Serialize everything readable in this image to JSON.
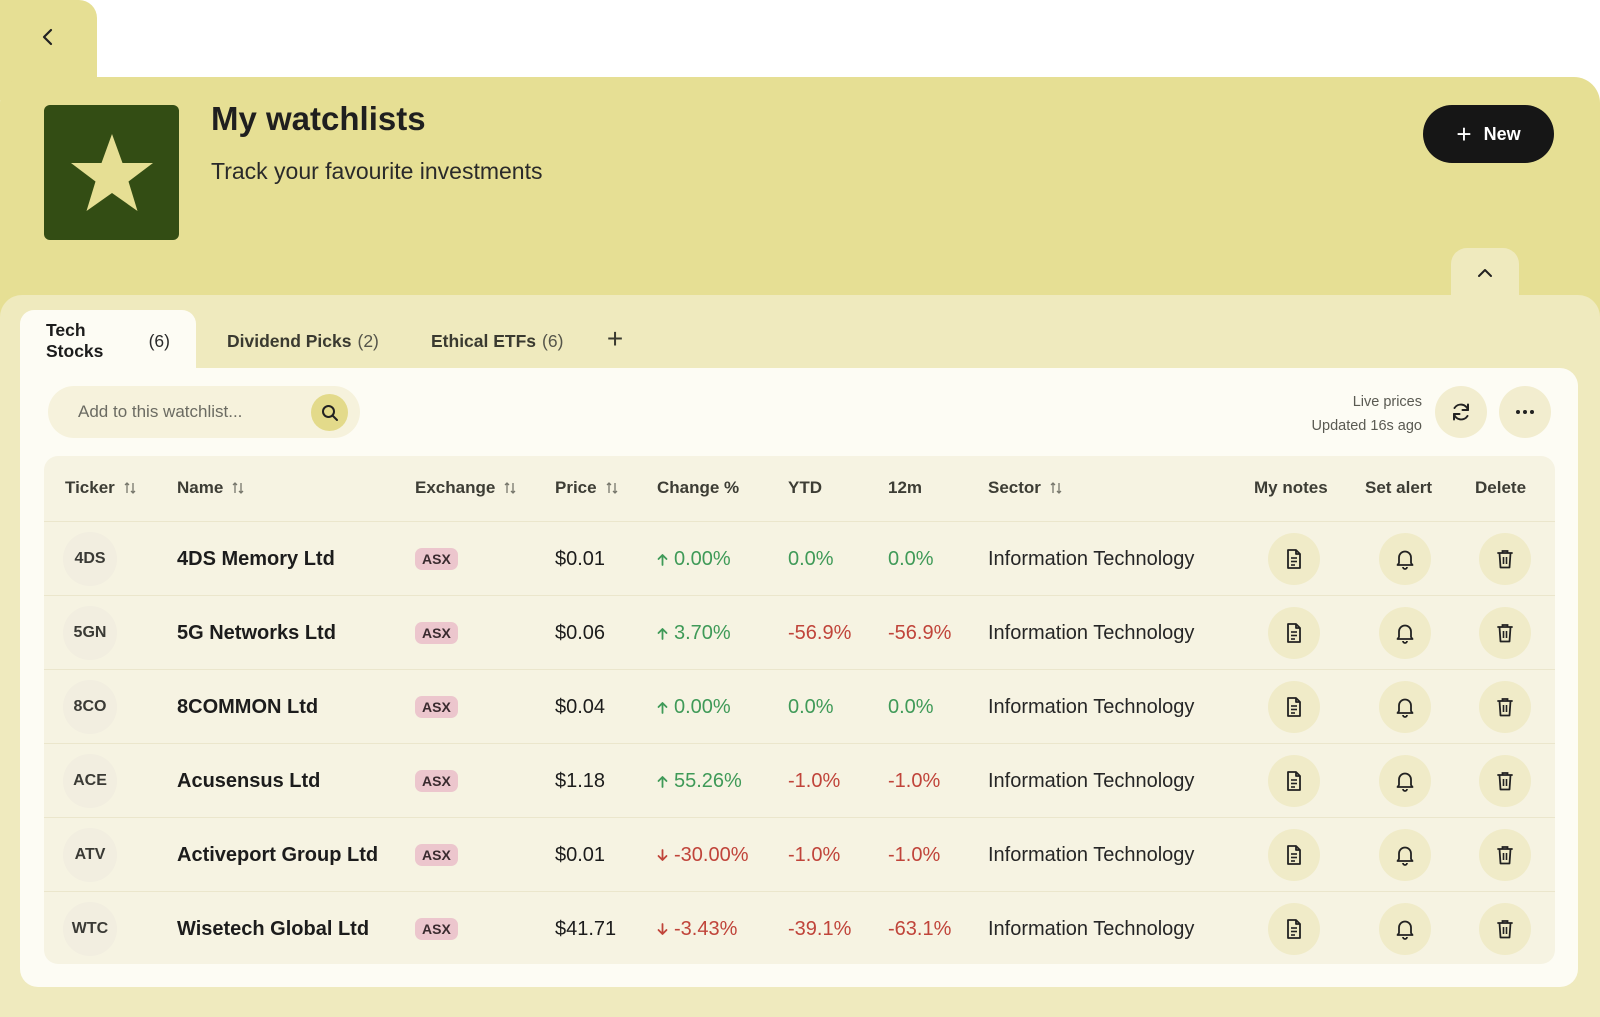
{
  "header": {
    "title": "My watchlists",
    "subtitle": "Track your favourite investments",
    "new_button": {
      "plus": "+",
      "label": "New"
    },
    "logo_icon": "star-icon",
    "colors": {
      "header_bg": "#e6df94",
      "logo_bg": "#334d14",
      "star": "#e6df94"
    }
  },
  "tabs": [
    {
      "label": "Tech Stocks",
      "count": "(6)",
      "active": true
    },
    {
      "label": "Dividend Picks",
      "count": "(2)",
      "active": false
    },
    {
      "label": "Ethical ETFs",
      "count": "(6)",
      "active": false
    }
  ],
  "add_tab": "+",
  "toolbar": {
    "search_placeholder": "Add to this watchlist...",
    "live_prices": "Live prices",
    "updated": "Updated 16s ago"
  },
  "table": {
    "columns": [
      "Ticker",
      "Name",
      "Exchange",
      "Price",
      "Change %",
      "YTD",
      "12m",
      "Sector",
      "My notes",
      "Set alert",
      "Delete"
    ],
    "rows": [
      {
        "ticker": "4DS",
        "name": "4DS Memory Ltd",
        "exchange": "ASX",
        "price": "$0.01",
        "change": "0.00%",
        "change_dir": "up",
        "ytd": "0.0%",
        "ytd_dir": "pos",
        "m12": "0.0%",
        "m12_dir": "pos",
        "sector": "Information Technology"
      },
      {
        "ticker": "5GN",
        "name": "5G Networks Ltd",
        "exchange": "ASX",
        "price": "$0.06",
        "change": "3.70%",
        "change_dir": "up",
        "ytd": "-56.9%",
        "ytd_dir": "neg",
        "m12": "-56.9%",
        "m12_dir": "neg",
        "sector": "Information Technology"
      },
      {
        "ticker": "8CO",
        "name": "8COMMON Ltd",
        "exchange": "ASX",
        "price": "$0.04",
        "change": "0.00%",
        "change_dir": "up",
        "ytd": "0.0%",
        "ytd_dir": "pos",
        "m12": "0.0%",
        "m12_dir": "pos",
        "sector": "Information Technology"
      },
      {
        "ticker": "ACE",
        "name": "Acusensus Ltd",
        "exchange": "ASX",
        "price": "$1.18",
        "change": "55.26%",
        "change_dir": "up",
        "ytd": "-1.0%",
        "ytd_dir": "neg",
        "m12": "-1.0%",
        "m12_dir": "neg",
        "sector": "Information Technology"
      },
      {
        "ticker": "ATV",
        "name": "Activeport Group Ltd",
        "exchange": "ASX",
        "price": "$0.01",
        "change": "-30.00%",
        "change_dir": "down",
        "ytd": "-1.0%",
        "ytd_dir": "neg",
        "m12": "-1.0%",
        "m12_dir": "neg",
        "sector": "Information Technology"
      },
      {
        "ticker": "WTC",
        "name": "Wisetech Global Ltd",
        "exchange": "ASX",
        "price": "$41.71",
        "change": "-3.43%",
        "change_dir": "down",
        "ytd": "-39.1%",
        "ytd_dir": "neg",
        "m12": "-63.1%",
        "m12_dir": "neg",
        "sector": "Information Technology"
      }
    ]
  },
  "colors": {
    "positive": "#3f9a58",
    "negative": "#c0443a",
    "badge": "#ecc6cd"
  }
}
